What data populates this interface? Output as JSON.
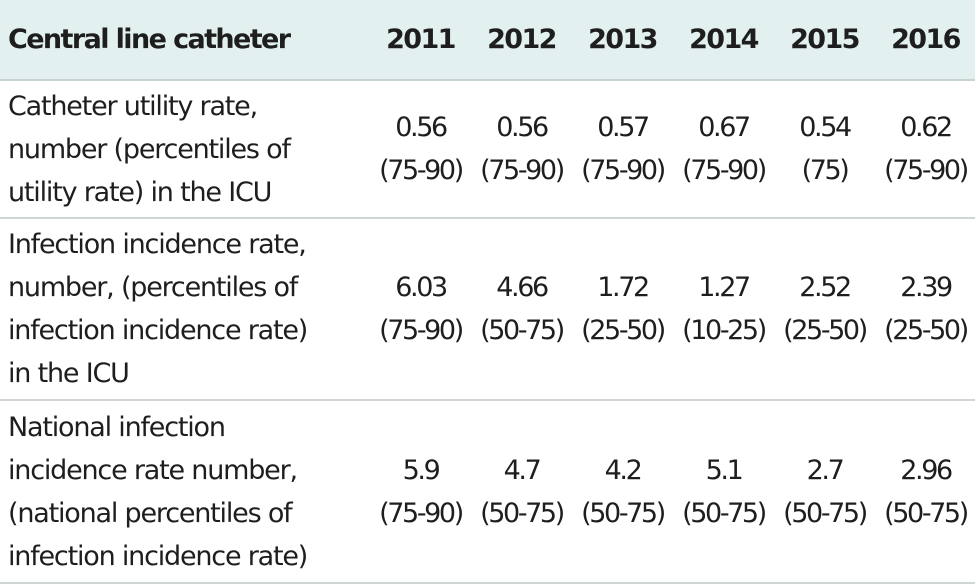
{
  "table": {
    "header": {
      "label": "Central line catheter",
      "years": [
        "2011",
        "2012",
        "2013",
        "2014",
        "2015",
        "2016"
      ]
    },
    "rows": [
      {
        "label": " Catheter utility rate,\nnumber (percentiles of\nutility rate) in the ICU",
        "cells": [
          {
            "value": "0.56",
            "range": "(75-90)"
          },
          {
            "value": "0.56",
            "range": "(75-90)"
          },
          {
            "value": "0.57",
            "range": "(75-90)"
          },
          {
            "value": "0.67",
            "range": "(75-90)"
          },
          {
            "value": "0.54",
            "range": "(75)"
          },
          {
            "value": "0.62",
            "range": "(75-90)"
          }
        ]
      },
      {
        "label": "Infection  incidence rate,\nnumber, (percentiles of\ninfection  incidence rate)\nin the ICU",
        "cells": [
          {
            "value": "6.03",
            "range": "(75-90)"
          },
          {
            "value": "4.66",
            "range": "(50-75)"
          },
          {
            "value": "1.72",
            "range": "(25-50)"
          },
          {
            "value": "1.27",
            "range": "(10-25)"
          },
          {
            "value": "2.52",
            "range": "(25-50)"
          },
          {
            "value": "2.39",
            "range": "(25-50)"
          }
        ]
      },
      {
        "label": "National infection\nincidence rate number,\n(national percentiles of\ninfection incidence rate)",
        "cells": [
          {
            "value": "5.9",
            "range": "(75-90)"
          },
          {
            "value": "4.7",
            "range": "(50-75)"
          },
          {
            "value": "4.2",
            "range": "(50-75)"
          },
          {
            "value": "5.1",
            "range": "(50-75)"
          },
          {
            "value": "2.7",
            "range": "(50-75)"
          },
          {
            "value": "2.96",
            "range": "(50-75)"
          }
        ]
      }
    ]
  }
}
